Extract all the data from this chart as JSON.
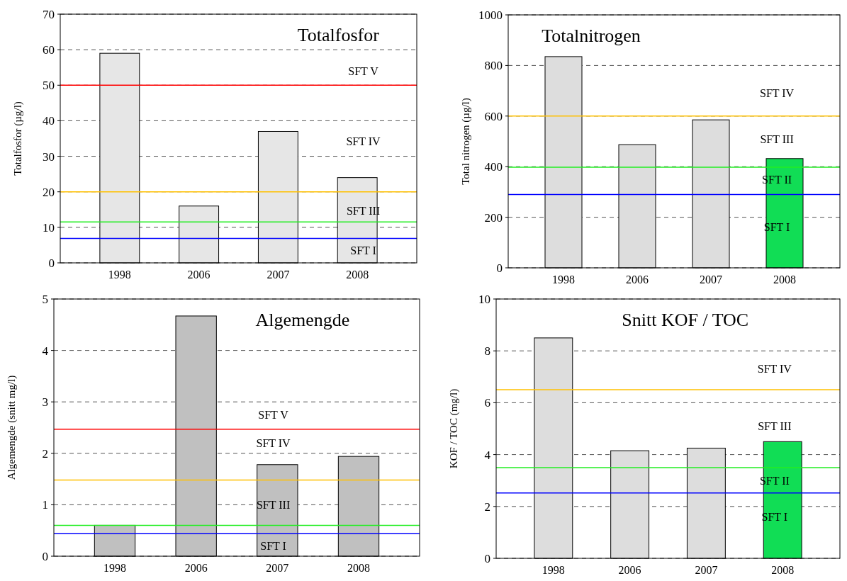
{
  "chart_data": [
    {
      "type": "bar",
      "title": "Totalfosfor",
      "ylabel": "Totalfosfor (µg/l)",
      "categories": [
        "1998",
        "2006",
        "2007",
        "2008"
      ],
      "values": [
        59,
        16,
        37,
        24
      ],
      "colors": [
        "#e6e6e6",
        "#e6e6e6",
        "#e6e6e6",
        "#e6e6e6"
      ],
      "ylim": [
        0,
        70
      ],
      "yticks": [
        0,
        10,
        20,
        30,
        40,
        50,
        60,
        70
      ],
      "grid": "y",
      "ref_lines": [
        {
          "axis": "y",
          "value": 50,
          "color": "#ff0000"
        },
        {
          "axis": "y",
          "value": 20,
          "color": "#ffc000"
        },
        {
          "axis": "y",
          "value": 11.5,
          "color": "#22ee22"
        },
        {
          "axis": "y",
          "value": 6.9,
          "color": "#0000ff"
        }
      ],
      "annotations": [
        "SFT V",
        "SFT IV",
        "SFT III",
        "SFT I"
      ]
    },
    {
      "type": "bar",
      "title": "Totalnitrogen",
      "ylabel": "Total nitrogen (µg/l)",
      "categories": [
        "1998",
        "2006",
        "2007",
        "2008"
      ],
      "values": [
        835,
        487,
        585,
        432
      ],
      "colors": [
        "#dddddd",
        "#dddddd",
        "#dddddd",
        "#11dd55"
      ],
      "ylim": [
        0,
        1000
      ],
      "yticks": [
        0,
        200,
        400,
        600,
        800,
        1000
      ],
      "grid": "y",
      "ref_lines": [
        {
          "axis": "y",
          "value": 600,
          "color": "#ffc000"
        },
        {
          "axis": "y",
          "value": 398,
          "color": "#22ee22"
        },
        {
          "axis": "y",
          "value": 290,
          "color": "#0000ff"
        }
      ],
      "annotations": [
        "SFT IV",
        "SFT III",
        "SFT II",
        "SFT I"
      ]
    },
    {
      "type": "bar",
      "title": "Algemengde",
      "ylabel": "Algemengde (snitt mg/l)",
      "categories": [
        "1998",
        "2006",
        "2007",
        "2008"
      ],
      "values": [
        0.6,
        4.67,
        1.78,
        1.94
      ],
      "colors": [
        "#c0c0c0",
        "#c0c0c0",
        "#c0c0c0",
        "#c0c0c0"
      ],
      "ylim": [
        0,
        5
      ],
      "yticks": [
        0,
        1,
        2,
        3,
        4,
        5
      ],
      "grid": "y",
      "ref_lines": [
        {
          "axis": "y",
          "value": 2.47,
          "color": "#ff0000"
        },
        {
          "axis": "y",
          "value": 1.48,
          "color": "#ffc000"
        },
        {
          "axis": "y",
          "value": 0.6,
          "color": "#22ee22"
        },
        {
          "axis": "y",
          "value": 0.44,
          "color": "#0000ff"
        }
      ],
      "annotations": [
        "SFT V",
        "SFT IV",
        "SFT III",
        "SFT I"
      ]
    },
    {
      "type": "bar",
      "title": "Snitt KOF / TOC",
      "ylabel": "KOF / TOC (mg/l)",
      "categories": [
        "1998",
        "2006",
        "2007",
        "2008"
      ],
      "values": [
        8.5,
        4.15,
        4.25,
        4.5
      ],
      "colors": [
        "#dddddd",
        "#dddddd",
        "#dddddd",
        "#11dd55"
      ],
      "ylim": [
        0,
        10
      ],
      "yticks": [
        0,
        2,
        4,
        6,
        8,
        10
      ],
      "grid": "y",
      "ref_lines": [
        {
          "axis": "y",
          "value": 6.5,
          "color": "#ffc000"
        },
        {
          "axis": "y",
          "value": 3.5,
          "color": "#22ee22"
        },
        {
          "axis": "y",
          "value": 2.52,
          "color": "#0000ff"
        }
      ],
      "annotations": [
        "SFT IV",
        "SFT III",
        "SFT II",
        "SFT I"
      ]
    }
  ]
}
